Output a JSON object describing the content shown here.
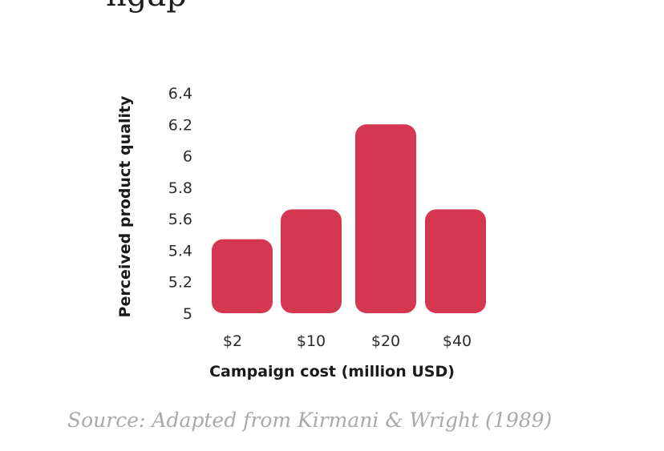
{
  "page": {
    "cutoff_heading": "ngap",
    "source": "Source: Adapted from Kirmani & Wright (1989)"
  },
  "chart_data": {
    "type": "bar",
    "categories": [
      "$2",
      "$10",
      "$20",
      "$40"
    ],
    "values": [
      5.47,
      5.66,
      6.2,
      5.66
    ],
    "ytick_labels": [
      "5",
      "5.2",
      "5.4",
      "5.6",
      "5.8",
      "6",
      "6.2",
      "6.4"
    ],
    "ylim": [
      5,
      6.4
    ],
    "xlabel": "Campaign cost (million USD)",
    "ylabel": "Perceived product quality",
    "bar_color": "#d4374f",
    "grid": false
  }
}
